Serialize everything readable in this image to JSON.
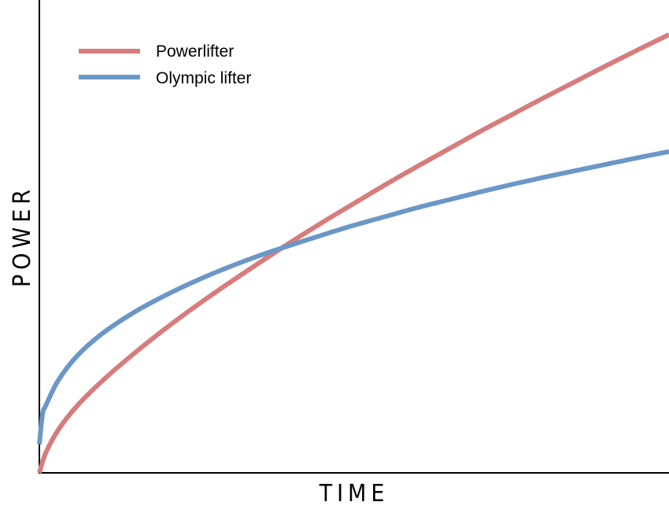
{
  "chart_data": {
    "type": "line",
    "title": "",
    "xlabel": "TIME",
    "ylabel": "POWER",
    "grid": false,
    "legend_position": "top-left",
    "xlim": [
      0,
      1
    ],
    "ylim": [
      0,
      1
    ],
    "series": [
      {
        "name": "Powerlifter",
        "color": "#d77c7c",
        "x": [
          0,
          0.01,
          0.03,
          0.06,
          0.1,
          0.15,
          0.2,
          0.25,
          0.3,
          0.35,
          0.4,
          0.45,
          0.5,
          0.55,
          0.6,
          0.65,
          0.7,
          0.75,
          0.8,
          0.85,
          0.9,
          0.95,
          1.0
        ],
        "y": [
          0.0,
          0.045,
          0.098,
          0.153,
          0.21,
          0.272,
          0.329,
          0.382,
          0.432,
          0.48,
          0.527,
          0.572,
          0.615,
          0.658,
          0.699,
          0.739,
          0.779,
          0.817,
          0.855,
          0.892,
          0.929,
          0.965,
          1.0
        ]
      },
      {
        "name": "Olympic lifter",
        "color": "#6a97c6",
        "x": [
          0,
          0.005,
          0.01,
          0.03,
          0.06,
          0.1,
          0.15,
          0.2,
          0.25,
          0.3,
          0.35,
          0.4,
          0.45,
          0.5,
          0.55,
          0.6,
          0.65,
          0.7,
          0.75,
          0.8,
          0.85,
          0.9,
          0.95,
          1.0
        ],
        "y": [
          0.065,
          0.134,
          0.153,
          0.211,
          0.267,
          0.318,
          0.366,
          0.405,
          0.439,
          0.469,
          0.496,
          0.52,
          0.543,
          0.565,
          0.585,
          0.605,
          0.623,
          0.641,
          0.658,
          0.674,
          0.689,
          0.704,
          0.719,
          0.733
        ]
      }
    ]
  }
}
